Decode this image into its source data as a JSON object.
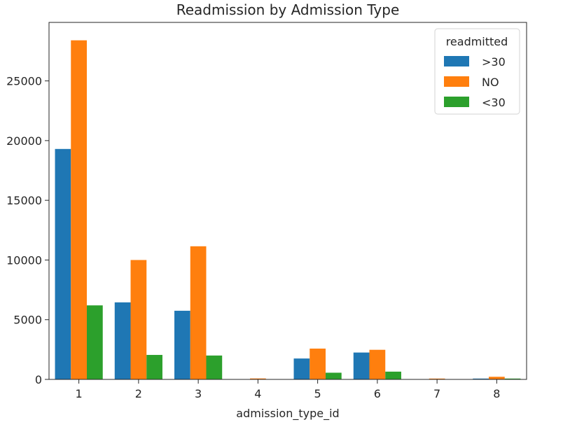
{
  "chart_data": {
    "type": "bar",
    "title": "Readmission by Admission Type",
    "xlabel": "admission_type_id",
    "ylabel": "",
    "categories": [
      "1",
      "2",
      "3",
      "4",
      "5",
      "6",
      "7",
      "8"
    ],
    "ylim": [
      0,
      29900
    ],
    "yticks": [
      0,
      5000,
      10000,
      15000,
      20000,
      25000
    ],
    "ytick_labels": [
      "0",
      "5000",
      "10000",
      "15000",
      "20000",
      "25000"
    ],
    "grid": false,
    "legend": {
      "title": "readmitted",
      "placement": "top-right"
    },
    "series": [
      {
        "name": ">30",
        "color": "#1f77b4",
        "values": [
          19300,
          6450,
          5750,
          10,
          1750,
          2250,
          10,
          70
        ]
      },
      {
        "name": "NO",
        "color": "#ff7f0e",
        "values": [
          28400,
          10000,
          11150,
          80,
          2580,
          2480,
          70,
          220
        ]
      },
      {
        "name": "<30",
        "color": "#2ca02c",
        "values": [
          6200,
          2050,
          2000,
          5,
          560,
          650,
          5,
          70
        ]
      }
    ]
  }
}
